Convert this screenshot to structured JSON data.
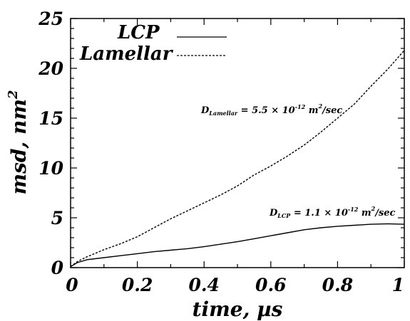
{
  "chart_data": {
    "type": "line",
    "xlabel": "time, µs",
    "ylabel_main": "msd, nm",
    "ylabel_sup": "2",
    "xlim": [
      0,
      1
    ],
    "ylim": [
      0,
      25
    ],
    "x_ticks": [
      "0",
      "0.2",
      "0.4",
      "0.6",
      "0.8",
      "1"
    ],
    "y_ticks": [
      "0",
      "5",
      "10",
      "15",
      "20",
      "25"
    ],
    "grid": false,
    "legend_position": "top-left",
    "series": [
      {
        "name": "LCP",
        "style": "solid",
        "color": "#000000",
        "x": [
          0,
          0.02,
          0.05,
          0.1,
          0.15,
          0.2,
          0.25,
          0.3,
          0.35,
          0.4,
          0.45,
          0.5,
          0.55,
          0.6,
          0.65,
          0.7,
          0.75,
          0.8,
          0.85,
          0.9,
          0.95,
          1.0
        ],
        "y": [
          0.1,
          0.5,
          0.8,
          1.0,
          1.2,
          1.4,
          1.6,
          1.75,
          1.9,
          2.1,
          2.35,
          2.6,
          2.9,
          3.2,
          3.5,
          3.8,
          4.0,
          4.15,
          4.25,
          4.35,
          4.4,
          4.35
        ]
      },
      {
        "name": "Lamellar",
        "style": "dashed",
        "color": "#000000",
        "x": [
          0,
          0.02,
          0.05,
          0.1,
          0.15,
          0.2,
          0.25,
          0.3,
          0.35,
          0.4,
          0.45,
          0.5,
          0.55,
          0.6,
          0.65,
          0.7,
          0.75,
          0.8,
          0.85,
          0.9,
          0.95,
          1.0
        ],
        "y": [
          0.1,
          0.6,
          1.1,
          1.8,
          2.4,
          3.1,
          4.0,
          4.9,
          5.7,
          6.5,
          7.3,
          8.2,
          9.3,
          10.2,
          11.2,
          12.3,
          13.6,
          15.0,
          16.4,
          18.2,
          19.9,
          21.8
        ]
      }
    ],
    "annotations": [
      {
        "main": "D",
        "sub": "Lamellar",
        "eq": " = 5.5 × 10",
        "exp": "-12",
        "unit": " m",
        "unit_sup": "2",
        "tail": "/sec"
      },
      {
        "main": "D",
        "sub": "LCP",
        "eq": " = 1.1 × 10",
        "exp": "-12",
        "unit": " m",
        "unit_sup": "2",
        "tail": "/sec"
      }
    ]
  }
}
